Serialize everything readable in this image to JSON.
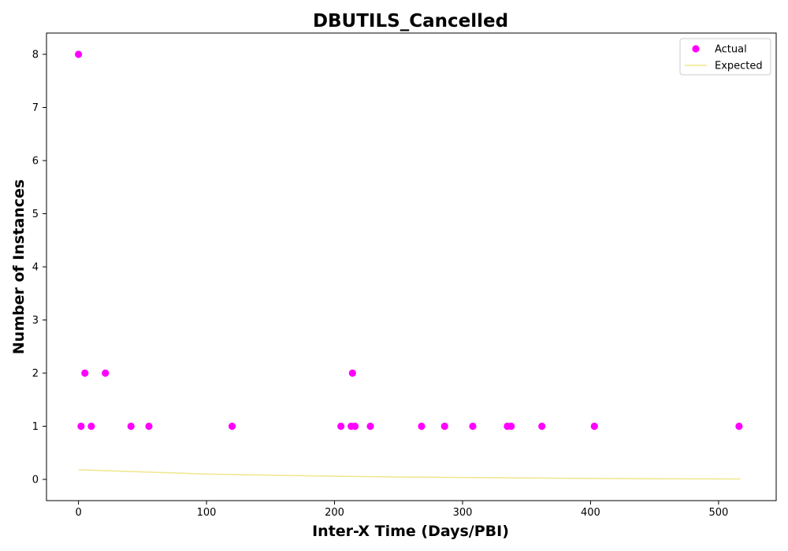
{
  "chart_data": {
    "type": "scatter",
    "title": "DBUTILS_Cancelled",
    "xlabel": "Inter-X Time (Days/PBI)",
    "ylabel": "Number of Instances",
    "xlim": [
      -25,
      545
    ],
    "ylim": [
      -0.4,
      8.4
    ],
    "xticks": [
      0,
      100,
      200,
      300,
      400,
      500
    ],
    "yticks": [
      0,
      1,
      2,
      3,
      4,
      5,
      6,
      7,
      8
    ],
    "grid": false,
    "legend_position": "top-right",
    "series": [
      {
        "name": "Actual",
        "kind": "scatter",
        "color": "#ff00ff",
        "points": [
          {
            "x": 0,
            "y": 8
          },
          {
            "x": 2,
            "y": 1
          },
          {
            "x": 5,
            "y": 2
          },
          {
            "x": 10,
            "y": 1
          },
          {
            "x": 21,
            "y": 2
          },
          {
            "x": 41,
            "y": 1
          },
          {
            "x": 55,
            "y": 1
          },
          {
            "x": 120,
            "y": 1
          },
          {
            "x": 205,
            "y": 1
          },
          {
            "x": 213,
            "y": 1
          },
          {
            "x": 214,
            "y": 2
          },
          {
            "x": 216,
            "y": 1
          },
          {
            "x": 228,
            "y": 1
          },
          {
            "x": 268,
            "y": 1
          },
          {
            "x": 286,
            "y": 1
          },
          {
            "x": 308,
            "y": 1
          },
          {
            "x": 335,
            "y": 1
          },
          {
            "x": 338,
            "y": 1
          },
          {
            "x": 362,
            "y": 1
          },
          {
            "x": 403,
            "y": 1
          },
          {
            "x": 516,
            "y": 1
          }
        ]
      },
      {
        "name": "Expected",
        "kind": "line",
        "color": "#f0e68c",
        "points": [
          {
            "x": 0,
            "y": 0.18
          },
          {
            "x": 50,
            "y": 0.14
          },
          {
            "x": 100,
            "y": 0.1
          },
          {
            "x": 150,
            "y": 0.08
          },
          {
            "x": 200,
            "y": 0.06
          },
          {
            "x": 250,
            "y": 0.045
          },
          {
            "x": 300,
            "y": 0.035
          },
          {
            "x": 350,
            "y": 0.025
          },
          {
            "x": 400,
            "y": 0.018
          },
          {
            "x": 450,
            "y": 0.012
          },
          {
            "x": 517,
            "y": 0.008
          }
        ]
      }
    ]
  }
}
